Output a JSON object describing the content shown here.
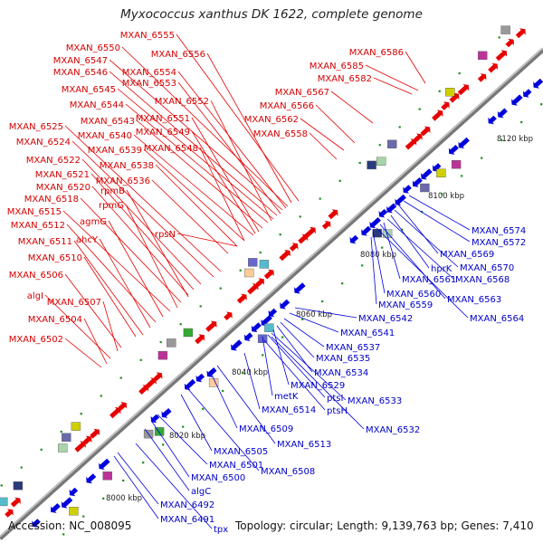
{
  "title": "Myxococcus xanthus DK 1622, complete genome",
  "accession": "Accession: NC_008095",
  "summary": "Topology: circular; Length: 9,139,763 bp; Genes: 7,410",
  "colors": {
    "forward": "#e60000",
    "reverse": "#0000dd",
    "backbone": "#8c8c8c",
    "tick": "#1a8f1a"
  },
  "position_labels": [
    "8000 kbp",
    "8020 kbp",
    "8040 kbp",
    "8060 kbp",
    "8080 kbp",
    "8100 kbp",
    "8120 kbp"
  ],
  "top_labels": [
    "MXAN_6555",
    "MXAN_6550",
    "MXAN_6556",
    "MXAN_6547",
    "MXAN_6546",
    "MXAN_6554",
    "MXAN_6553",
    "MXAN_6545",
    "MXAN_6544",
    "MXAN_6552",
    "MXAN_6543",
    "MXAN_6551",
    "MXAN_6525",
    "MXAN_6540",
    "MXAN_6549",
    "MXAN_6524",
    "MXAN_6539",
    "MXAN_6548",
    "MXAN_6522",
    "MXAN_6538",
    "MXAN_6521",
    "MXAN_6536",
    "MXAN_6520",
    "rpmB",
    "MXAN_6518",
    "rpmG",
    "MXAN_6515",
    "MXAN_6512",
    "agmG",
    "rpsN",
    "MXAN_6511",
    "ahcY",
    "MXAN_6510",
    "MXAN_6506",
    "algI",
    "MXAN_6507",
    "MXAN_6504",
    "MXAN_6502",
    "MXAN_6586",
    "MXAN_6585",
    "MXAN_6582",
    "MXAN_6567",
    "MXAN_6566",
    "MXAN_6562",
    "MXAN_6558"
  ],
  "bottom_labels": [
    "MXAN_6574",
    "MXAN_6572",
    "MXAN_6569",
    "MXAN_6570",
    "hprK",
    "MXAN_6568",
    "MXAN_6561",
    "MXAN_6560",
    "MXAN_6563",
    "MXAN_6559",
    "MXAN_6564",
    "MXAN_6542",
    "MXAN_6541",
    "MXAN_6537",
    "MXAN_6535",
    "MXAN_6534",
    "MXAN_6529",
    "metK",
    "MXAN_6533",
    "ptsI",
    "MXAN_6514",
    "ptsH",
    "MXAN_6532",
    "MXAN_6509",
    "MXAN_6513",
    "MXAN_6505",
    "MXAN_6501",
    "MXAN_6508",
    "MXAN_6500",
    "algC",
    "MXAN_6492",
    "MXAN_6491",
    "tpx"
  ]
}
